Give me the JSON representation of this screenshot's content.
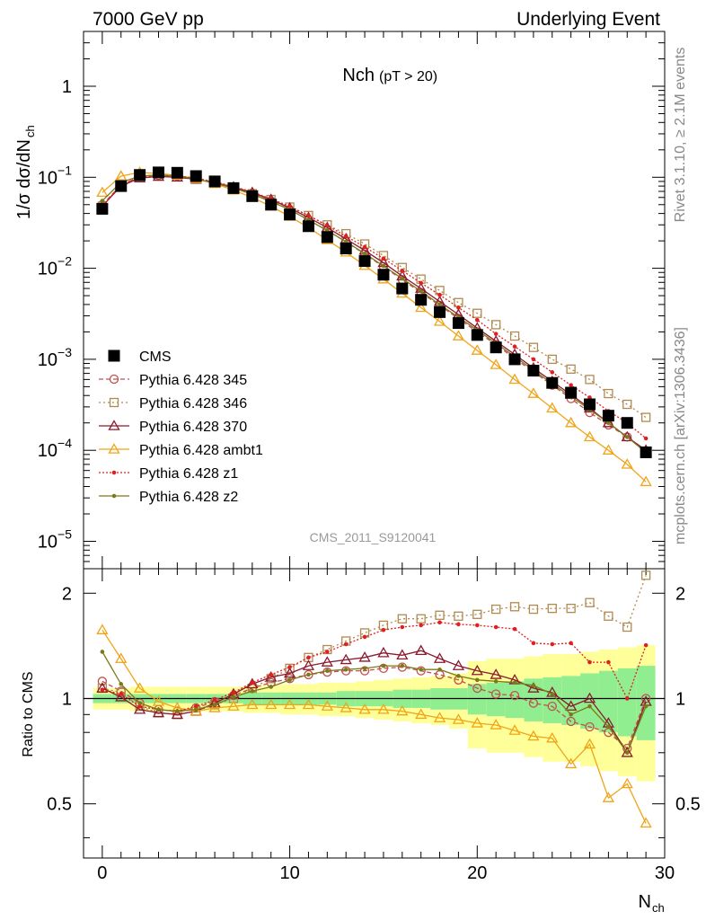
{
  "header": {
    "left": "7000 GeV pp",
    "right": "Underlying Event"
  },
  "side_labels": {
    "rivet": "Rivet 3.1.10, ≥ 2.1M events",
    "mcplots": "mcplots.cern.ch [arXiv:1306.3436]"
  },
  "watermark": "CMS_2011_S9120041",
  "chart_data": [
    {
      "panel": "main",
      "type": "line",
      "title": "Nch",
      "title_sub": "(pT > 20)",
      "ylabel": "1/σ dσ/dN",
      "ylabel_sub": "ch",
      "xlabel": "N",
      "xlabel_sub": "ch",
      "xlim": [
        -1,
        30
      ],
      "ylim": [
        5e-06,
        4
      ],
      "yscale": "log",
      "x_ticks": [
        0,
        10,
        20,
        30
      ],
      "y_tick_labels": [
        {
          "base": "10",
          "exp": "−5"
        },
        {
          "base": "10",
          "exp": "−4"
        },
        {
          "base": "10",
          "exp": "−3"
        },
        {
          "base": "10",
          "exp": "−2"
        },
        {
          "base": "10",
          "exp": "−1"
        },
        {
          "base": "1",
          "exp": ""
        }
      ],
      "legend_position": "lower-left",
      "x": [
        0,
        1,
        2,
        3,
        4,
        5,
        6,
        7,
        8,
        9,
        10,
        11,
        12,
        13,
        14,
        15,
        16,
        17,
        18,
        19,
        20,
        21,
        22,
        23,
        24,
        25,
        26,
        27,
        28,
        29
      ],
      "series": [
        {
          "name": "CMS",
          "color": "#000000",
          "marker": "square-filled",
          "dash": "none",
          "values": [
            0.045,
            0.08,
            0.106,
            0.113,
            0.112,
            0.103,
            0.09,
            0.076,
            0.062,
            0.05,
            0.039,
            0.029,
            0.022,
            0.0165,
            0.012,
            0.0085,
            0.006,
            0.0045,
            0.0033,
            0.0025,
            0.00185,
            0.00135,
            0.001,
            0.00075,
            0.00055,
            0.00043,
            0.00032,
            0.00024,
            0.0002,
            9.5e-05
          ]
        },
        {
          "name": "Pythia 6.428 345",
          "color": "#c0504d",
          "marker": "circle-open",
          "dash": "5,3",
          "values": [
            0.05,
            0.082,
            0.102,
            0.105,
            0.103,
            0.097,
            0.088,
            0.077,
            0.066,
            0.055,
            0.044,
            0.034,
            0.026,
            0.0195,
            0.0143,
            0.0104,
            0.0075,
            0.0054,
            0.0039,
            0.0028,
            0.002,
            0.00145,
            0.00102,
            0.00073,
            0.00052,
            0.00037,
            0.00026,
            0.00019,
            0.00014,
            9.5e-05
          ]
        },
        {
          "name": "Pythia 6.428 346",
          "color": "#b08a50",
          "marker": "square-open",
          "dash": "2,3",
          "values": [
            0.048,
            0.083,
            0.1,
            0.103,
            0.101,
            0.095,
            0.086,
            0.076,
            0.066,
            0.057,
            0.047,
            0.038,
            0.03,
            0.024,
            0.0185,
            0.0138,
            0.0102,
            0.0076,
            0.0057,
            0.0042,
            0.0032,
            0.0024,
            0.0018,
            0.00135,
            0.001,
            0.00078,
            0.0006,
            0.00042,
            0.00032,
            0.00023
          ]
        },
        {
          "name": "Pythia 6.428 370",
          "color": "#8b1a2e",
          "marker": "triangle-open",
          "dash": "none",
          "values": [
            0.048,
            0.08,
            0.098,
            0.102,
            0.1,
            0.095,
            0.087,
            0.078,
            0.068,
            0.057,
            0.046,
            0.036,
            0.028,
            0.021,
            0.0157,
            0.0115,
            0.0082,
            0.006,
            0.0043,
            0.0031,
            0.0022,
            0.00158,
            0.00113,
            0.0008,
            0.00057,
            0.00041,
            0.00029,
            0.0002,
            0.00014,
            0.0001
          ]
        },
        {
          "name": "Pythia 6.428 ambt1",
          "color": "#f0a418",
          "marker": "triangle-open",
          "dash": "none",
          "values": [
            0.068,
            0.103,
            0.113,
            0.11,
            0.105,
            0.096,
            0.085,
            0.072,
            0.06,
            0.048,
            0.037,
            0.028,
            0.0205,
            0.015,
            0.0107,
            0.0076,
            0.0053,
            0.0037,
            0.0026,
            0.0018,
            0.00125,
            0.00087,
            0.0006,
            0.00042,
            0.00029,
            0.0002,
            0.00014,
            0.0001,
            7e-05,
            4.5e-05
          ]
        },
        {
          "name": "Pythia 6.428 z1",
          "color": "#e02020",
          "marker": "dot",
          "dash": "2,2",
          "values": [
            0.048,
            0.082,
            0.1,
            0.105,
            0.104,
            0.098,
            0.089,
            0.079,
            0.069,
            0.058,
            0.048,
            0.038,
            0.0295,
            0.0225,
            0.0171,
            0.0128,
            0.0094,
            0.0069,
            0.0051,
            0.0037,
            0.0027,
            0.0019,
            0.00138,
            0.001,
            0.00072,
            0.00052,
            0.00038,
            0.00027,
            0.0002,
            0.000135
          ]
        },
        {
          "name": "Pythia 6.428 z2",
          "color": "#7a7a1a",
          "marker": "dot",
          "dash": "none",
          "values": [
            0.055,
            0.088,
            0.103,
            0.106,
            0.103,
            0.096,
            0.086,
            0.076,
            0.065,
            0.054,
            0.044,
            0.034,
            0.026,
            0.0196,
            0.0145,
            0.0106,
            0.0077,
            0.0056,
            0.004,
            0.0029,
            0.0021,
            0.0015,
            0.00107,
            0.00076,
            0.00054,
            0.00039,
            0.00028,
            0.0002,
            0.00014,
            9.5e-05
          ]
        }
      ]
    },
    {
      "panel": "ratio",
      "type": "line",
      "ylabel": "Ratio to CMS",
      "xlim": [
        -1,
        30
      ],
      "ylim": [
        0.35,
        2.35
      ],
      "yscale": "log",
      "y_ticks": [
        0.5,
        1,
        2
      ],
      "x_ticks": [
        0,
        10,
        20,
        30
      ],
      "reference_line": 1,
      "uncertainty_bands": {
        "outer_color": "#ffff99",
        "inner_color": "#90ee90",
        "x": [
          0,
          1,
          2,
          3,
          4,
          5,
          6,
          7,
          8,
          9,
          10,
          11,
          12,
          13,
          14,
          15,
          16,
          17,
          18,
          19,
          20,
          21,
          22,
          23,
          24,
          25,
          26,
          27,
          28,
          29
        ],
        "outer": [
          0.07,
          0.07,
          0.08,
          0.08,
          0.08,
          0.08,
          0.08,
          0.08,
          0.09,
          0.09,
          0.1,
          0.1,
          0.11,
          0.11,
          0.12,
          0.13,
          0.14,
          0.15,
          0.16,
          0.18,
          0.28,
          0.3,
          0.3,
          0.32,
          0.34,
          0.34,
          0.36,
          0.38,
          0.4,
          0.42
        ],
        "inner": [
          0.03,
          0.03,
          0.03,
          0.03,
          0.03,
          0.03,
          0.03,
          0.03,
          0.04,
          0.04,
          0.04,
          0.04,
          0.04,
          0.05,
          0.05,
          0.05,
          0.06,
          0.06,
          0.07,
          0.07,
          0.1,
          0.11,
          0.12,
          0.14,
          0.15,
          0.16,
          0.18,
          0.2,
          0.22,
          0.24
        ]
      },
      "x": [
        0,
        1,
        2,
        3,
        4,
        5,
        6,
        7,
        8,
        9,
        10,
        11,
        12,
        13,
        14,
        15,
        16,
        17,
        18,
        19,
        20,
        21,
        22,
        23,
        24,
        25,
        26,
        27,
        28,
        29
      ],
      "series": [
        {
          "name": "Pythia 6.428 345",
          "color": "#c0504d",
          "marker": "circle-open",
          "dash": "5,3",
          "values": [
            1.12,
            1.05,
            0.97,
            0.93,
            0.92,
            0.94,
            0.98,
            1.02,
            1.07,
            1.11,
            1.14,
            1.17,
            1.19,
            1.2,
            1.2,
            1.22,
            1.23,
            1.2,
            1.17,
            1.13,
            1.07,
            1.03,
            1.02,
            0.97,
            0.95,
            0.86,
            0.83,
            0.8,
            0.72,
            1.0
          ]
        },
        {
          "name": "Pythia 6.428 346",
          "color": "#b08a50",
          "marker": "square-open",
          "dash": "2,3",
          "values": [
            1.07,
            1.04,
            0.95,
            0.91,
            0.9,
            0.92,
            0.96,
            1.0,
            1.07,
            1.14,
            1.22,
            1.31,
            1.38,
            1.46,
            1.54,
            1.62,
            1.69,
            1.69,
            1.73,
            1.72,
            1.74,
            1.8,
            1.83,
            1.8,
            1.81,
            1.81,
            1.88,
            1.72,
            1.6,
            2.25
          ]
        },
        {
          "name": "Pythia 6.428 370",
          "color": "#8b1a2e",
          "marker": "triangle-open",
          "dash": "none",
          "values": [
            1.07,
            1.01,
            0.93,
            0.91,
            0.9,
            0.92,
            0.97,
            1.03,
            1.1,
            1.15,
            1.18,
            1.24,
            1.27,
            1.29,
            1.31,
            1.35,
            1.33,
            1.37,
            1.3,
            1.24,
            1.2,
            1.17,
            1.13,
            1.07,
            1.04,
            0.95,
            1.0,
            0.85,
            0.7,
            0.98
          ]
        },
        {
          "name": "Pythia 6.428 ambt1",
          "color": "#f0a418",
          "marker": "triangle-open",
          "dash": "none",
          "values": [
            1.57,
            1.3,
            1.07,
            0.98,
            0.94,
            0.92,
            0.94,
            0.95,
            0.96,
            0.96,
            0.96,
            0.96,
            0.95,
            0.94,
            0.93,
            0.93,
            0.92,
            0.9,
            0.88,
            0.87,
            0.85,
            0.84,
            0.81,
            0.78,
            0.77,
            0.65,
            0.74,
            0.52,
            0.57,
            0.44
          ]
        },
        {
          "name": "Pythia 6.428 z1",
          "color": "#e02020",
          "marker": "dot",
          "dash": "2,2",
          "values": [
            1.06,
            1.03,
            0.95,
            0.93,
            0.92,
            0.95,
            0.99,
            1.04,
            1.11,
            1.17,
            1.23,
            1.31,
            1.36,
            1.43,
            1.5,
            1.57,
            1.6,
            1.62,
            1.65,
            1.63,
            1.62,
            1.6,
            1.58,
            1.44,
            1.43,
            1.44,
            1.27,
            1.27,
            1.0,
            1.42
          ]
        },
        {
          "name": "Pythia 6.428 z2",
          "color": "#7a7a1a",
          "marker": "dot",
          "dash": "none",
          "values": [
            1.36,
            1.1,
            0.97,
            0.93,
            0.92,
            0.93,
            0.96,
            1.01,
            1.05,
            1.08,
            1.13,
            1.17,
            1.2,
            1.21,
            1.22,
            1.24,
            1.24,
            1.21,
            1.21,
            1.16,
            1.13,
            1.12,
            1.11,
            1.09,
            1.03,
            0.9,
            0.95,
            0.83,
            0.7,
            0.95
          ]
        }
      ]
    }
  ]
}
